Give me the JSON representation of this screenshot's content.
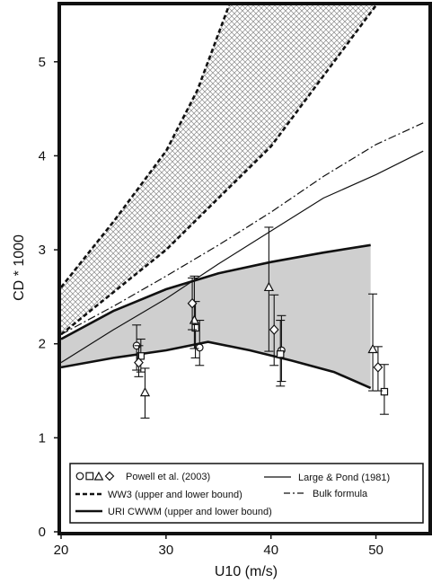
{
  "chart_data": {
    "type": "line",
    "title": "",
    "xlabel": "U10 (m/s)",
    "ylabel": "CD * 1000",
    "xlim": [
      20,
      55
    ],
    "ylim": [
      0,
      5.6
    ],
    "xticks": [
      20,
      30,
      40,
      50
    ],
    "yticks": [
      0,
      1,
      2,
      3,
      4,
      5
    ],
    "grid": false,
    "legend_placement": "bottom",
    "legend": {
      "powell_symbols": "OΔ◇",
      "powell_label": "Powell et al. (2003)",
      "ww3_label": "WW3 (upper and lower bound)",
      "uri_label": "URI CWWM (upper and lower bound)",
      "large_pond_label": "Large & Pond (1981)",
      "bulk_label": "Bulk formula"
    },
    "ww3_bounds": {
      "upper": [
        [
          20,
          2.6
        ],
        [
          25,
          3.3
        ],
        [
          30,
          4.05
        ],
        [
          33,
          4.7
        ],
        [
          36,
          5.6
        ]
      ],
      "lower": [
        [
          20,
          2.1
        ],
        [
          25,
          2.55
        ],
        [
          30,
          3.0
        ],
        [
          35,
          3.55
        ],
        [
          40,
          4.1
        ],
        [
          45,
          4.85
        ],
        [
          50,
          5.6
        ]
      ]
    },
    "uri_cwwm_bounds": {
      "upper": [
        [
          20,
          2.05
        ],
        [
          25,
          2.35
        ],
        [
          30,
          2.58
        ],
        [
          35,
          2.75
        ],
        [
          40,
          2.87
        ],
        [
          45,
          2.97
        ],
        [
          49.5,
          3.05
        ]
      ],
      "lower": [
        [
          20,
          1.75
        ],
        [
          25,
          1.85
        ],
        [
          30,
          1.93
        ],
        [
          34,
          2.02
        ],
        [
          38,
          1.93
        ],
        [
          42,
          1.82
        ],
        [
          46,
          1.7
        ],
        [
          49.5,
          1.53
        ]
      ]
    },
    "large_pond": [
      [
        20,
        1.8
      ],
      [
        25,
        2.15
      ],
      [
        30,
        2.48
      ],
      [
        35,
        2.85
      ],
      [
        40,
        3.2
      ],
      [
        45,
        3.55
      ],
      [
        50,
        3.8
      ],
      [
        54.5,
        4.05
      ]
    ],
    "bulk_formula": [
      [
        20,
        2.1
      ],
      [
        25,
        2.4
      ],
      [
        30,
        2.72
      ],
      [
        35,
        3.05
      ],
      [
        40,
        3.4
      ],
      [
        45,
        3.78
      ],
      [
        50,
        4.12
      ],
      [
        54.5,
        4.35
      ]
    ],
    "powell_series": [
      {
        "marker": "circle",
        "points": [
          {
            "x": 27.2,
            "y": 1.98,
            "lo": 1.72,
            "hi": 2.2
          },
          {
            "x": 33.2,
            "y": 1.96,
            "lo": 1.77,
            "hi": 2.25
          },
          {
            "x": 41.0,
            "y": 1.93,
            "lo": 1.6,
            "hi": 2.3
          }
        ]
      },
      {
        "marker": "square",
        "points": [
          {
            "x": 27.6,
            "y": 1.87,
            "lo": 1.7,
            "hi": 2.05
          },
          {
            "x": 32.8,
            "y": 2.17,
            "lo": 1.85,
            "hi": 2.45
          },
          {
            "x": 40.9,
            "y": 1.89,
            "lo": 1.55,
            "hi": 2.25
          },
          {
            "x": 50.8,
            "y": 1.49,
            "lo": 1.25,
            "hi": 1.78
          }
        ]
      },
      {
        "marker": "triangle",
        "points": [
          {
            "x": 28.0,
            "y": 1.48,
            "lo": 1.21,
            "hi": 1.74
          },
          {
            "x": 32.7,
            "y": 2.25,
            "lo": 1.95,
            "hi": 2.72
          },
          {
            "x": 39.8,
            "y": 2.6,
            "lo": 1.92,
            "hi": 3.24
          },
          {
            "x": 49.7,
            "y": 1.94,
            "lo": 1.5,
            "hi": 2.53
          }
        ]
      },
      {
        "marker": "diamond",
        "points": [
          {
            "x": 27.4,
            "y": 1.8,
            "lo": 1.65,
            "hi": 1.98
          },
          {
            "x": 32.5,
            "y": 2.43,
            "lo": 2.15,
            "hi": 2.7
          },
          {
            "x": 40.3,
            "y": 2.15,
            "lo": 1.77,
            "hi": 2.52
          },
          {
            "x": 50.2,
            "y": 1.75,
            "lo": 1.5,
            "hi": 1.97
          }
        ]
      }
    ]
  }
}
